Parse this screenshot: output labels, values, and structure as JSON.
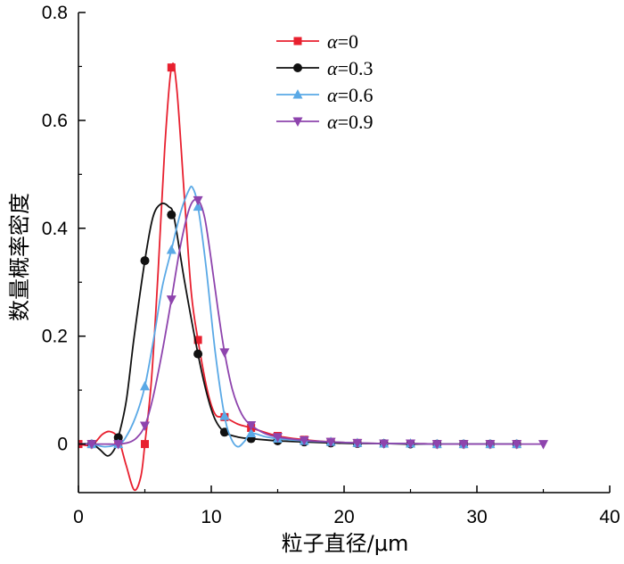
{
  "chart_data": {
    "type": "line",
    "xlabel": "粒子直径/μm",
    "ylabel": "数量概率密度",
    "xlim": [
      0,
      40
    ],
    "ylim": [
      -0.09,
      0.8
    ],
    "xticks": [
      0,
      10,
      20,
      30,
      40
    ],
    "yticks": [
      0,
      0.2,
      0.4,
      0.6,
      0.8
    ],
    "xtick_labels": [
      "0",
      "10",
      "20",
      "30",
      "40"
    ],
    "ytick_labels": [
      "0",
      "0.2",
      "0.4",
      "0.6",
      "0.8"
    ],
    "grid": false,
    "legend_position": "top-right",
    "series": [
      {
        "name": "α=0",
        "color": "#e8202f",
        "marker": "square",
        "x": [
          0,
          1,
          3,
          5,
          7,
          9,
          11,
          13,
          15,
          17,
          19,
          21,
          23,
          25,
          27,
          29,
          31,
          33
        ],
        "y": [
          0,
          0,
          0,
          0,
          0.698,
          0.193,
          0.05,
          0.03,
          0.015,
          0.008,
          0.004,
          0.002,
          0.001,
          0.001,
          0,
          0,
          0,
          0
        ],
        "curve": [
          [
            0,
            0
          ],
          [
            1,
            -0.002
          ],
          [
            1.8,
            0.018
          ],
          [
            2.4,
            0.023
          ],
          [
            3,
            0.01
          ],
          [
            3.6,
            -0.04
          ],
          [
            4.2,
            -0.085
          ],
          [
            4.7,
            -0.06
          ],
          [
            5,
            0
          ],
          [
            5.5,
            0.12
          ],
          [
            6,
            0.32
          ],
          [
            6.5,
            0.55
          ],
          [
            7,
            0.698
          ],
          [
            7.4,
            0.66
          ],
          [
            8,
            0.45
          ],
          [
            8.5,
            0.28
          ],
          [
            9,
            0.193
          ],
          [
            9.7,
            0.1
          ],
          [
            10.3,
            0.055
          ],
          [
            11,
            0.05
          ],
          [
            12,
            0.037
          ],
          [
            13,
            0.03
          ],
          [
            15,
            0.015
          ],
          [
            17,
            0.008
          ],
          [
            19,
            0.004
          ],
          [
            21,
            0.002
          ],
          [
            23,
            0.001
          ],
          [
            25,
            0.001
          ],
          [
            27,
            0
          ],
          [
            29,
            0
          ],
          [
            31,
            0
          ],
          [
            33,
            0
          ]
        ]
      },
      {
        "name": "α=0.3",
        "color": "#111111",
        "marker": "circle",
        "x": [
          1,
          3,
          5,
          7,
          9,
          11,
          13,
          15,
          17,
          19,
          21,
          23,
          25,
          27,
          29,
          31,
          33
        ],
        "y": [
          0,
          0.012,
          0.34,
          0.425,
          0.167,
          0.022,
          0.01,
          0.006,
          0.004,
          0.002,
          0.001,
          0.001,
          0,
          0,
          0,
          0,
          0
        ],
        "curve": [
          [
            0,
            0
          ],
          [
            1,
            0
          ],
          [
            1.6,
            -0.01
          ],
          [
            2.2,
            -0.022
          ],
          [
            2.7,
            -0.01
          ],
          [
            3,
            0.012
          ],
          [
            3.6,
            0.08
          ],
          [
            4.2,
            0.2
          ],
          [
            5,
            0.34
          ],
          [
            5.6,
            0.42
          ],
          [
            6.2,
            0.445
          ],
          [
            6.8,
            0.44
          ],
          [
            7.2,
            0.42
          ],
          [
            8,
            0.3
          ],
          [
            9,
            0.167
          ],
          [
            9.7,
            0.09
          ],
          [
            10.3,
            0.045
          ],
          [
            11,
            0.022
          ],
          [
            12,
            0.013
          ],
          [
            13,
            0.01
          ],
          [
            15,
            0.006
          ],
          [
            17,
            0.004
          ],
          [
            19,
            0.002
          ],
          [
            21,
            0.001
          ],
          [
            23,
            0.001
          ],
          [
            25,
            0
          ],
          [
            27,
            0
          ],
          [
            29,
            0
          ],
          [
            31,
            0
          ],
          [
            33,
            0
          ]
        ]
      },
      {
        "name": "α=0.6",
        "color": "#5aa9e6",
        "marker": "triangle-up",
        "x": [
          1,
          3,
          5,
          7,
          9,
          11,
          13,
          15,
          17,
          19,
          21,
          23,
          25,
          27,
          29,
          31,
          33
        ],
        "y": [
          0,
          0,
          0.107,
          0.36,
          0.44,
          0.052,
          0.02,
          0.01,
          0.006,
          0.004,
          0.002,
          0.001,
          0.001,
          0,
          0,
          0,
          0
        ],
        "curve": [
          [
            0,
            0
          ],
          [
            1,
            0
          ],
          [
            2,
            -0.005
          ],
          [
            3,
            0
          ],
          [
            3.5,
            0.01
          ],
          [
            4.3,
            0.05
          ],
          [
            5,
            0.107
          ],
          [
            5.7,
            0.2
          ],
          [
            6.3,
            0.29
          ],
          [
            7,
            0.36
          ],
          [
            7.7,
            0.43
          ],
          [
            8.3,
            0.47
          ],
          [
            8.6,
            0.475
          ],
          [
            9,
            0.44
          ],
          [
            9.6,
            0.33
          ],
          [
            10.3,
            0.17
          ],
          [
            11,
            0.052
          ],
          [
            11.5,
            0.01
          ],
          [
            12,
            -0.005
          ],
          [
            12.5,
            0.005
          ],
          [
            13,
            0.02
          ],
          [
            14,
            0.014
          ],
          [
            15,
            0.01
          ],
          [
            17,
            0.006
          ],
          [
            19,
            0.004
          ],
          [
            21,
            0.002
          ],
          [
            23,
            0.001
          ],
          [
            25,
            0.001
          ],
          [
            27,
            0
          ],
          [
            29,
            0
          ],
          [
            31,
            0
          ],
          [
            33,
            0
          ]
        ]
      },
      {
        "name": "α=0.9",
        "color": "#8e44ad",
        "marker": "triangle-down",
        "x": [
          1,
          3,
          5,
          7,
          9,
          11,
          13,
          15,
          17,
          19,
          21,
          23,
          25,
          27,
          29,
          31,
          33,
          35
        ],
        "y": [
          0,
          0,
          0.034,
          0.268,
          0.452,
          0.17,
          0.035,
          0.013,
          0.007,
          0.004,
          0.002,
          0.001,
          0.001,
          0,
          0,
          0,
          0,
          0
        ],
        "curve": [
          [
            0,
            0
          ],
          [
            1,
            0
          ],
          [
            2,
            0
          ],
          [
            3,
            0
          ],
          [
            3.8,
            0.003
          ],
          [
            4.4,
            0.012
          ],
          [
            5,
            0.034
          ],
          [
            5.6,
            0.085
          ],
          [
            6.3,
            0.17
          ],
          [
            7,
            0.268
          ],
          [
            7.7,
            0.37
          ],
          [
            8.4,
            0.44
          ],
          [
            9,
            0.452
          ],
          [
            9.5,
            0.42
          ],
          [
            10,
            0.34
          ],
          [
            10.5,
            0.25
          ],
          [
            11,
            0.17
          ],
          [
            11.6,
            0.1
          ],
          [
            12.3,
            0.055
          ],
          [
            13,
            0.035
          ],
          [
            14,
            0.02
          ],
          [
            15,
            0.013
          ],
          [
            17,
            0.007
          ],
          [
            19,
            0.004
          ],
          [
            21,
            0.002
          ],
          [
            23,
            0.001
          ],
          [
            25,
            0.001
          ],
          [
            27,
            0
          ],
          [
            29,
            0
          ],
          [
            31,
            0
          ],
          [
            33,
            0
          ],
          [
            35,
            0
          ]
        ]
      }
    ]
  }
}
